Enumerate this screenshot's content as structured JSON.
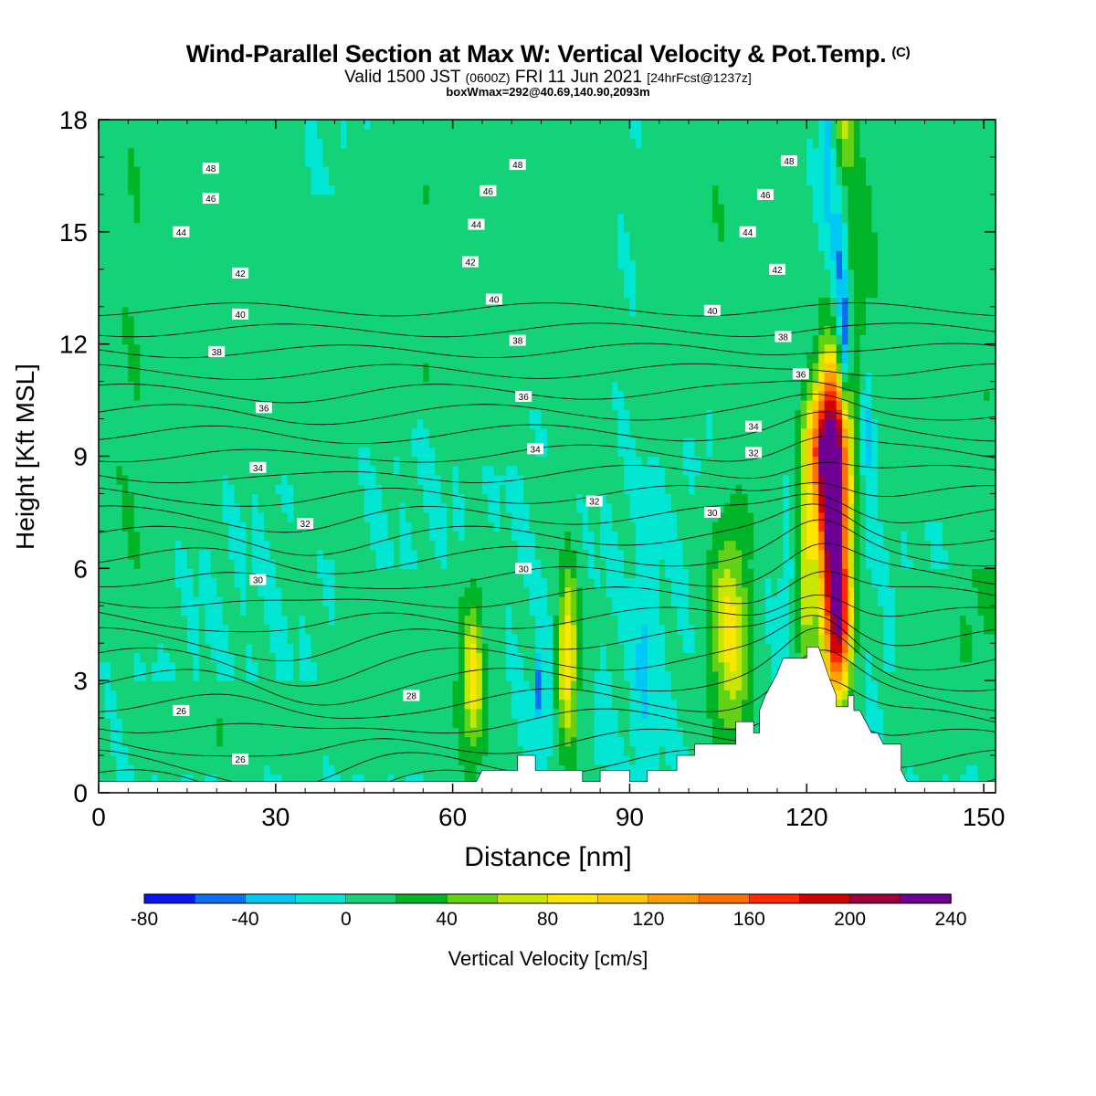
{
  "title": "Wind-Parallel Section at Max W: Vertical Velocity & Pot.Temp.",
  "title_mark": "(C)",
  "subtitle": {
    "valid": "Valid 1500 JST",
    "zulu": "(0600Z)",
    "date": "FRI 11 Jun 2021",
    "fcst": "[24hrFcst@1237z]"
  },
  "boxline": "boxWmax=292@40.69,140.90,2093m",
  "chart_data": {
    "type": "heatmap",
    "xlabel": "Distance [nm]",
    "ylabel": "Height [Kft MSL]",
    "xlim": [
      0,
      152
    ],
    "ylim": [
      0,
      18
    ],
    "x_ticks": [
      0,
      30,
      60,
      90,
      120,
      150
    ],
    "y_ticks": [
      0,
      3,
      6,
      9,
      12,
      15,
      18
    ],
    "colorbar": {
      "label": "Vertical Velocity [cm/s]",
      "levels": [
        -80,
        -60,
        -40,
        -20,
        0,
        20,
        40,
        60,
        80,
        100,
        120,
        140,
        160,
        180,
        200,
        220,
        240
      ],
      "tick_labels": [
        "-80",
        "-40",
        "0",
        "40",
        "80",
        "120",
        "160",
        "200",
        "240"
      ],
      "colors": [
        "#0a14f0",
        "#0a6ef0",
        "#00c8f5",
        "#00e6d2",
        "#14d278",
        "#00b428",
        "#64d214",
        "#c8e600",
        "#ffe600",
        "#ffc800",
        "#ffa000",
        "#ff6e00",
        "#ff2800",
        "#d20000",
        "#a0003c",
        "#6e0096"
      ]
    },
    "background_w": 0,
    "terrain": [
      [
        0,
        0.3
      ],
      [
        16,
        0.3
      ],
      [
        38,
        0.3
      ],
      [
        50,
        0.3
      ],
      [
        64,
        0.3
      ],
      [
        65,
        0.6
      ],
      [
        71,
        0.6
      ],
      [
        71,
        1.0
      ],
      [
        74,
        1.0
      ],
      [
        74,
        0.6
      ],
      [
        82,
        0.6
      ],
      [
        82,
        0.3
      ],
      [
        85,
        0.3
      ],
      [
        85,
        0.6
      ],
      [
        90,
        0.6
      ],
      [
        90,
        0.3
      ],
      [
        93,
        0.3
      ],
      [
        93,
        0.6
      ],
      [
        98,
        0.6
      ],
      [
        98,
        1.0
      ],
      [
        101,
        1.0
      ],
      [
        101,
        1.3
      ],
      [
        108,
        1.3
      ],
      [
        108,
        1.9
      ],
      [
        111,
        1.9
      ],
      [
        111,
        1.6
      ],
      [
        112,
        1.6
      ],
      [
        112,
        2.2
      ],
      [
        113,
        2.6
      ],
      [
        114,
        2.9
      ],
      [
        115,
        3.2
      ],
      [
        116,
        3.6
      ],
      [
        120,
        3.6
      ],
      [
        120,
        3.9
      ],
      [
        122,
        3.9
      ],
      [
        124,
        3.0
      ],
      [
        125,
        2.6
      ],
      [
        125,
        2.3
      ],
      [
        127,
        2.3
      ],
      [
        127,
        2.6
      ],
      [
        128,
        2.6
      ],
      [
        128,
        2.2
      ],
      [
        129,
        2.2
      ],
      [
        130,
        1.9
      ],
      [
        131,
        1.6
      ],
      [
        132,
        1.6
      ],
      [
        133,
        1.3
      ],
      [
        136,
        1.3
      ],
      [
        136,
        0.6
      ],
      [
        137,
        0.3
      ],
      [
        152,
        0.3
      ]
    ],
    "w_features": [
      {
        "x": 124.5,
        "z": 7.5,
        "sx": 1.9,
        "sz": 2.6,
        "w": 250
      },
      {
        "x": 125.5,
        "z": 4.2,
        "sx": 1.4,
        "sz": 1.3,
        "w": 120
      },
      {
        "x": 122.8,
        "z": 9.4,
        "sx": 2.2,
        "sz": 1.2,
        "w": 110
      },
      {
        "x": 126.5,
        "z": 12.0,
        "sx": 0.7,
        "sz": 1.2,
        "w": -75
      },
      {
        "x": 125.5,
        "z": 14.2,
        "sx": 0.9,
        "sz": 1.8,
        "w": -60
      },
      {
        "x": 123.5,
        "z": 17.2,
        "sx": 0.8,
        "sz": 1.8,
        "w": -40
      },
      {
        "x": 126.3,
        "z": 17.8,
        "sx": 1.2,
        "sz": 1.0,
        "w": 55
      },
      {
        "x": 128.5,
        "z": 14.5,
        "sx": 3.0,
        "sz": 3.2,
        "w": 30
      },
      {
        "x": 130.0,
        "z": 10.0,
        "sx": 0.6,
        "sz": 1.0,
        "w": -40
      },
      {
        "x": 131.0,
        "z": 8.5,
        "sx": 0.5,
        "sz": 1.5,
        "w": -25
      },
      {
        "x": 119.8,
        "z": 6.0,
        "sx": 1.0,
        "sz": 2.3,
        "w": 70
      },
      {
        "x": 106.8,
        "z": 4.8,
        "sx": 2.3,
        "sz": 1.9,
        "w": 60
      },
      {
        "x": 107.5,
        "z": 3.0,
        "sx": 2.6,
        "sz": 2.0,
        "w": 35
      },
      {
        "x": 79.5,
        "z": 3.8,
        "sx": 1.0,
        "sz": 1.5,
        "w": 75
      },
      {
        "x": 79.5,
        "z": 3.0,
        "sx": 2.0,
        "sz": 2.6,
        "w": 28
      },
      {
        "x": 63.5,
        "z": 3.3,
        "sx": 1.1,
        "sz": 1.5,
        "w": 60
      },
      {
        "x": 63.0,
        "z": 2.5,
        "sx": 2.5,
        "sz": 2.0,
        "w": 28
      },
      {
        "x": 92.5,
        "z": 3.5,
        "sx": 1.4,
        "sz": 1.8,
        "w": -25
      },
      {
        "x": 76.0,
        "z": 3.0,
        "sx": 0.8,
        "sz": 1.4,
        "w": -22
      },
      {
        "x": 74.5,
        "z": 2.8,
        "sx": 0.4,
        "sz": 0.6,
        "w": -55
      },
      {
        "x": 85.5,
        "z": 2.4,
        "sx": 0.6,
        "sz": 0.6,
        "w": -18
      },
      {
        "x": 116.5,
        "z": 5.5,
        "sx": 0.6,
        "sz": 1.8,
        "w": -20
      },
      {
        "x": 134.0,
        "z": 4.2,
        "sx": 0.6,
        "sz": 0.6,
        "w": -20
      }
    ],
    "w_bands": [
      {
        "x": 5,
        "z0": 3.5,
        "z1": 18,
        "w": 18,
        "sx": 4
      },
      {
        "x": 16,
        "z0": 6.5,
        "z1": 18,
        "w": 14,
        "sx": 3
      },
      {
        "x": 27,
        "z0": 8,
        "z1": 18,
        "w": 14,
        "sx": 3
      },
      {
        "x": 38,
        "z0": 6,
        "z1": 16,
        "w": 12,
        "sx": 3
      },
      {
        "x": 49,
        "z0": 9,
        "z1": 18,
        "w": 14,
        "sx": 3
      },
      {
        "x": 56,
        "z0": 10,
        "z1": 18,
        "w": 14,
        "sx": 3
      },
      {
        "x": 66,
        "z0": 8.5,
        "z1": 18,
        "w": 14,
        "sx": 3
      },
      {
        "x": 75,
        "z0": 10,
        "z1": 18,
        "w": 13,
        "sx": 3
      },
      {
        "x": 82,
        "z0": 8,
        "z1": 18,
        "w": 14,
        "sx": 3
      },
      {
        "x": 96,
        "z0": 9,
        "z1": 18,
        "w": 14,
        "sx": 3
      },
      {
        "x": 104,
        "z0": 11,
        "z1": 18,
        "w": 16,
        "sx": 3
      },
      {
        "x": 112,
        "z0": 6,
        "z1": 18,
        "w": 15,
        "sx": 3
      },
      {
        "x": 140,
        "z0": 7,
        "z1": 18,
        "w": 15,
        "sx": 4
      },
      {
        "x": 150,
        "z0": 3,
        "z1": 18,
        "w": 16,
        "sx": 3
      },
      {
        "x": 22,
        "z0": 0.3,
        "z1": 3.0,
        "w": 16,
        "sx": 10
      },
      {
        "x": 50,
        "z0": 0.3,
        "z1": 6,
        "w": 16,
        "sx": 6
      },
      {
        "x": 143,
        "z0": 0.3,
        "z1": 6,
        "w": 14,
        "sx": 5
      }
    ],
    "theta_contour_interval": 1,
    "theta_labels": [
      {
        "x": 19,
        "z": 16.7,
        "text": "48"
      },
      {
        "x": 71,
        "z": 16.8,
        "text": "48"
      },
      {
        "x": 117,
        "z": 16.9,
        "text": "48"
      },
      {
        "x": 19,
        "z": 15.9,
        "text": "46"
      },
      {
        "x": 66,
        "z": 16.1,
        "text": "46"
      },
      {
        "x": 113,
        "z": 16.0,
        "text": "46"
      },
      {
        "x": 14,
        "z": 15.0,
        "text": "44"
      },
      {
        "x": 64,
        "z": 15.2,
        "text": "44"
      },
      {
        "x": 110,
        "z": 15.0,
        "text": "44"
      },
      {
        "x": 24,
        "z": 13.9,
        "text": "42"
      },
      {
        "x": 63,
        "z": 14.2,
        "text": "42"
      },
      {
        "x": 115,
        "z": 14.0,
        "text": "42"
      },
      {
        "x": 24,
        "z": 12.8,
        "text": "40"
      },
      {
        "x": 67,
        "z": 13.2,
        "text": "40"
      },
      {
        "x": 104,
        "z": 12.9,
        "text": "40"
      },
      {
        "x": 20,
        "z": 11.8,
        "text": "38"
      },
      {
        "x": 71,
        "z": 12.1,
        "text": "38"
      },
      {
        "x": 116,
        "z": 12.2,
        "text": "38"
      },
      {
        "x": 28,
        "z": 10.3,
        "text": "36"
      },
      {
        "x": 72,
        "z": 10.6,
        "text": "36"
      },
      {
        "x": 119,
        "z": 11.2,
        "text": "36"
      },
      {
        "x": 27,
        "z": 8.7,
        "text": "34"
      },
      {
        "x": 74,
        "z": 9.2,
        "text": "34"
      },
      {
        "x": 111,
        "z": 9.8,
        "text": "34"
      },
      {
        "x": 35,
        "z": 7.2,
        "text": "32"
      },
      {
        "x": 84,
        "z": 7.8,
        "text": "32"
      },
      {
        "x": 111,
        "z": 9.1,
        "text": "32"
      },
      {
        "x": 27,
        "z": 5.7,
        "text": "30"
      },
      {
        "x": 72,
        "z": 6.0,
        "text": "30"
      },
      {
        "x": 104,
        "z": 7.5,
        "text": "30"
      },
      {
        "x": 53,
        "z": 2.6,
        "text": "28"
      },
      {
        "x": 14,
        "z": 2.2,
        "text": "26"
      },
      {
        "x": 24,
        "z": 0.9,
        "text": "26"
      }
    ]
  }
}
